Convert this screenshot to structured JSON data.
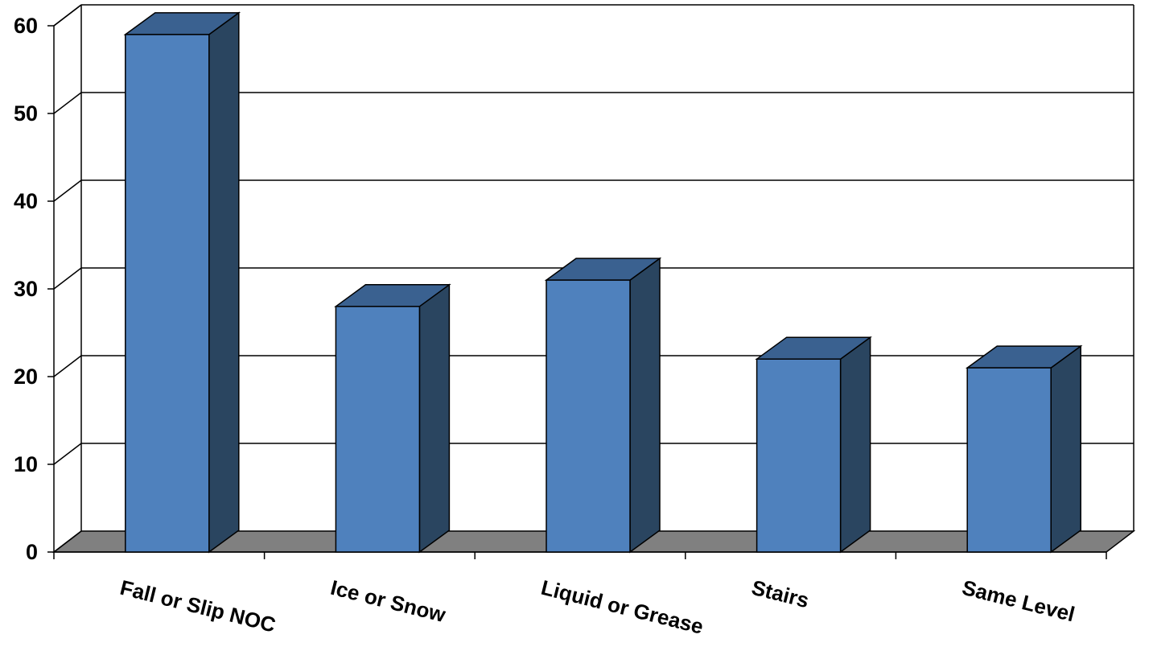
{
  "chart_data": {
    "type": "bar",
    "style": "3d-column",
    "categories": [
      "Fall or Slip NOC",
      "Ice or Snow",
      "Liquid or Grease",
      "Stairs",
      "Same Level"
    ],
    "values": [
      59,
      28,
      31,
      22,
      21
    ],
    "ylim": [
      0,
      60
    ],
    "yticks": [
      0,
      10,
      20,
      30,
      40,
      50,
      60
    ],
    "title": "",
    "xlabel": "",
    "ylabel": "",
    "grid": true,
    "legend": "none",
    "colors": {
      "bar_front": "#4F81BD",
      "bar_side": "#2A4560",
      "bar_top": "#3A6190",
      "floor": "#808080",
      "grid": "#000000"
    }
  }
}
